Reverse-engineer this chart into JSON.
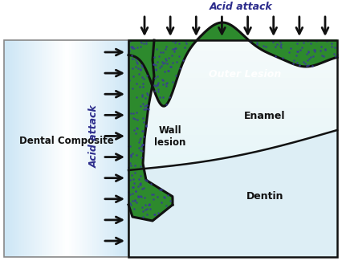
{
  "bg_color": "#ffffff",
  "green_lesion_color": "#2d8a2d",
  "green_lesion_dots_color": "#3a3a9a",
  "enamel_color_light": "#c8e8f2",
  "enamel_color_mid": "#a8d4e8",
  "dentin_color": "#ddeef5",
  "acid_attack_top_label": "Acid attack",
  "acid_attack_side_label": "Acid attack",
  "outer_lesion_label": "Outer Lesion",
  "wall_lesion_label": "Wall\nlesion",
  "enamel_label": "Enamel",
  "dentin_label": "Dentin",
  "dental_composite_label": "Dental Composite",
  "label_color_blue": "#2c2c8c",
  "label_color_dark": "#111111",
  "label_color_white": "#ffffff",
  "arrow_color": "#111111",
  "border_color": "#111111"
}
